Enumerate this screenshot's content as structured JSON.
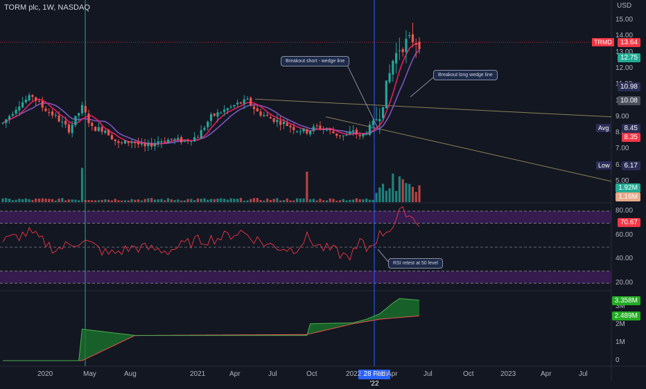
{
  "title": "TORM plc, 1W, NASDAQ",
  "currency": "USD",
  "colors": {
    "background": "#131722",
    "up": "#26a69a",
    "down": "#ef5350",
    "ma_fast": "#e91e63",
    "ma_slow": "#7e57c2",
    "trendline": "#8b8456",
    "rsi": "#f23645",
    "rsi_band": "#3f1d5a",
    "cursor": "#2962ff",
    "obv_fill": "#1b7a2c"
  },
  "price_axis": {
    "ticks": [
      "15.00",
      "14.00",
      "13.00",
      "12.00",
      "11.00",
      "10.00",
      "9.00",
      "8.00",
      "7.00",
      "6.00",
      "5.00"
    ],
    "labels": [
      {
        "name": "TRMD",
        "value": "13.64",
        "bg": "#f23645"
      },
      {
        "name": "",
        "value": "12.75",
        "bg": "#22ab94"
      },
      {
        "name": "",
        "value": "10.98",
        "bg": "#2a2e55"
      },
      {
        "name": "",
        "value": "10.08",
        "bg": "#4a4f5e"
      },
      {
        "name": "Avg",
        "value": "8.45",
        "bg": "#2a2e55"
      },
      {
        "name": "",
        "value": "8.35",
        "bg": "#f23645"
      },
      {
        "name": "Low",
        "value": "6.17",
        "bg": "#2a2e55"
      },
      {
        "name": "",
        "value": "1.92M",
        "bg": "#22ab94"
      },
      {
        "name": "",
        "value": "1.16M",
        "bg": "#e8a989"
      }
    ]
  },
  "rsi_axis": {
    "ticks": [
      "80.00",
      "60.00",
      "40.00",
      "20.00"
    ],
    "current": "70.67"
  },
  "obv_axis": {
    "ticks": [
      "3M",
      "2M",
      "1M",
      "0"
    ],
    "labels": [
      "3.358M",
      "2.489M"
    ]
  },
  "time_axis": {
    "ticks": [
      "2020",
      "May",
      "Aug",
      "2021",
      "Apr",
      "Jul",
      "Oct",
      "2022",
      "Feb",
      "Apr",
      "Jul",
      "Oct",
      "2023",
      "Apr",
      "Jul"
    ],
    "cursor_label": "28 Feb '22"
  },
  "annotations": {
    "breakout_short": "Breakout short - wedge line",
    "breakout_long": "Breakout long wedge line",
    "rsi_retest": "RSI retest at 50 level"
  },
  "chart_data": {
    "type": "candlestick",
    "title": "TORM plc, 1W, NASDAQ",
    "ylabel": "USD",
    "ylim": [
      4.7,
      15.6
    ],
    "start": "2020-01-01",
    "weeks": 127,
    "close_keypoints": [
      [
        0,
        8.6
      ],
      [
        5,
        9.8
      ],
      [
        9,
        10.3
      ],
      [
        12,
        9.6
      ],
      [
        16,
        9.0
      ],
      [
        20,
        8.2
      ],
      [
        24,
        9.6
      ],
      [
        27,
        8.3
      ],
      [
        31,
        8.2
      ],
      [
        35,
        7.3
      ],
      [
        39,
        7.5
      ],
      [
        43,
        7.1
      ],
      [
        47,
        7.5
      ],
      [
        51,
        7.6
      ],
      [
        55,
        7.5
      ],
      [
        59,
        7.8
      ],
      [
        63,
        9.0
      ],
      [
        67,
        9.4
      ],
      [
        71,
        9.8
      ],
      [
        74,
        10.0
      ],
      [
        77,
        9.3
      ],
      [
        81,
        8.9
      ],
      [
        85,
        8.6
      ],
      [
        89,
        8.2
      ],
      [
        92,
        8.1
      ],
      [
        95,
        8.4
      ],
      [
        98,
        8.2
      ],
      [
        101,
        7.9
      ],
      [
        104,
        7.8
      ],
      [
        106,
        8.2
      ],
      [
        108,
        7.7
      ],
      [
        110,
        8.1
      ],
      [
        112,
        8.6
      ],
      [
        114,
        9.3
      ],
      [
        116,
        10.8
      ],
      [
        118,
        12.5
      ],
      [
        120,
        13.3
      ],
      [
        122,
        13.6
      ],
      [
        124,
        13.8
      ],
      [
        126,
        13.64
      ]
    ],
    "volume_spikes": [
      [
        24,
        0.9
      ],
      [
        92,
        0.8
      ],
      [
        118,
        0.75
      ],
      [
        122,
        0.5
      ]
    ],
    "rsi_keypoints": [
      [
        0,
        55
      ],
      [
        8,
        62
      ],
      [
        16,
        48
      ],
      [
        24,
        56
      ],
      [
        32,
        44
      ],
      [
        40,
        50
      ],
      [
        50,
        47
      ],
      [
        58,
        55
      ],
      [
        66,
        58
      ],
      [
        72,
        63
      ],
      [
        80,
        52
      ],
      [
        88,
        48
      ],
      [
        92,
        58
      ],
      [
        96,
        50
      ],
      [
        100,
        47
      ],
      [
        104,
        42
      ],
      [
        107,
        47
      ],
      [
        108,
        55
      ],
      [
        110,
        48
      ],
      [
        114,
        60
      ],
      [
        118,
        68
      ],
      [
        120,
        78
      ],
      [
        122,
        80
      ],
      [
        124,
        74
      ],
      [
        126,
        70.67
      ]
    ],
    "obv_keypoints": [
      [
        0,
        0
      ],
      [
        23,
        0
      ],
      [
        24,
        1.75
      ],
      [
        40,
        1.4
      ],
      [
        92,
        1.4
      ],
      [
        93,
        2.05
      ],
      [
        106,
        2.1
      ],
      [
        110,
        2.3
      ],
      [
        114,
        2.6
      ],
      [
        118,
        3.2
      ],
      [
        120,
        3.45
      ],
      [
        126,
        3.358
      ]
    ],
    "obv_ma_keypoints": [
      [
        24,
        0
      ],
      [
        40,
        1.4
      ],
      [
        92,
        1.45
      ],
      [
        106,
        2.05
      ],
      [
        114,
        2.3
      ],
      [
        126,
        2.489
      ]
    ],
    "rsi_levels": [
      80,
      70,
      50,
      30,
      20
    ]
  }
}
